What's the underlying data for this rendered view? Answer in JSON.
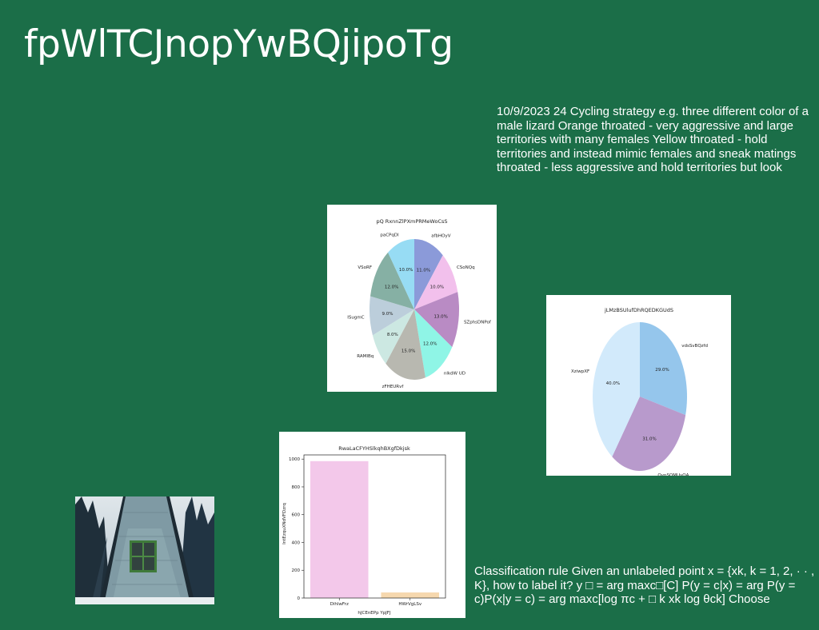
{
  "slide": {
    "title": "fpWlTCJnopYwBQjipoTg",
    "text1": "10/9/2023 24 Cycling strategy e.g. three different color of a male lizard Orange throated - very aggressive and large territories with many females Yellow throated - hold territories and instead mimic females and sneak matings throated - less aggressive and hold territories but look",
    "text2": "Classification rule Given an unlabeled point x = {xk, k = 1, 2, · · , K}, how to label it? y □ = arg maxc□[C] P(y = c|x) = arg P(y = c)P(x|y = c) = arg maxc[log πc + □ k xk log θck] Choose"
  },
  "photo": {
    "icon": "a-frame-cabin-photo"
  },
  "chart_data": [
    {
      "type": "pie",
      "title": "pQ RxnnZlPXmPRMeWoCsS",
      "categories": [
        "afbHOyV",
        "CSoNQq",
        "SZphsDNPof",
        "nlkdW UD",
        "zFHEURvf",
        "RAMIBq",
        "ISugmC",
        "VSoRF",
        "paCPqDl"
      ],
      "values": [
        11.0,
        10.0,
        13.0,
        12.0,
        15.0,
        8.0,
        9.0,
        12.0,
        10.0
      ],
      "labels": [
        "11.0%",
        "10.0%",
        "13.0%",
        "12.0%",
        "15.0%",
        "8.0%",
        "9.0%",
        "12.0%",
        "10.0%"
      ],
      "colors": [
        "#8b9ad9",
        "#f2c0ec",
        "#b98bc4",
        "#8ff5e6",
        "#b8b8b0",
        "#cce8e2",
        "#bccedb",
        "#86b0a4",
        "#97dcf4"
      ]
    },
    {
      "type": "pie",
      "title": "jLMzBSUlufDhRQEDKGUdS",
      "categories": [
        "vdsSvBQzfd",
        "OynSOMUyQA",
        "XziwpXF"
      ],
      "values": [
        29.0,
        31.0,
        40.0
      ],
      "labels": [
        "29.0%",
        "31.0%",
        "40.0%"
      ],
      "colors": [
        "#95c6ec",
        "#b89acc",
        "#d2eafb"
      ]
    },
    {
      "type": "bar",
      "title": "RwaLaCFYHSlkqhBXgfDkjsk",
      "xlabel": "hJCEnEPp YpJFJ",
      "ylabel": "IntEzquXNdVFDzrq",
      "categories": [
        "DihlwFrz",
        "HWrVgLSv"
      ],
      "values": [
        985,
        40
      ],
      "ylim": [
        0,
        1030
      ],
      "yticks": [
        0,
        200,
        400,
        600,
        800,
        1000
      ],
      "colors": [
        "#f3c8ea",
        "#f6d8ae"
      ]
    }
  ]
}
